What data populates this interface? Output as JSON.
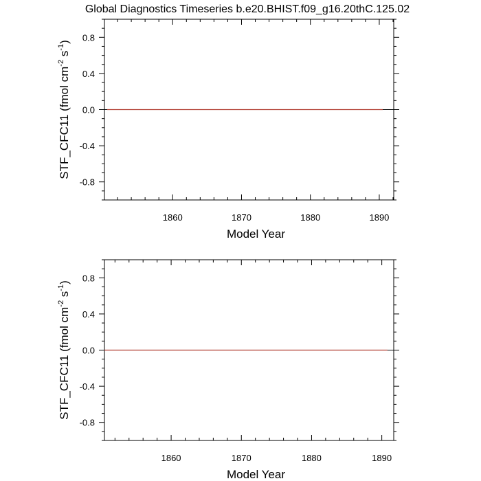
{
  "title": "Global Diagnostics Timeseries b.e20.BHIST.f09_g16.20thC.125.02",
  "colors": {
    "series": "#b03a2e",
    "zero_line": "#000000",
    "frame": "#000000"
  },
  "chart_data": [
    {
      "type": "line",
      "xlabel": "Model Year",
      "ylabel": "STF_CFC11 (fmol cm",
      "ylabel_exp1": "-2",
      "ylabel_mid": " s",
      "ylabel_exp2": "-1",
      "ylabel_end": ")",
      "xlim": [
        1850.1,
        1892.1
      ],
      "ylim": [
        -1.0,
        1.0
      ],
      "xticks": [
        1860,
        1870,
        1880,
        1890
      ],
      "xtick_labels": [
        "1860",
        "1870",
        "1880",
        "1890"
      ],
      "yticks": [
        0.8,
        0.4,
        0.0,
        -0.4,
        -0.8
      ],
      "ytick_labels": [
        "0.8",
        "0.4",
        "0.0",
        "-0.4",
        "-0.8"
      ],
      "reference_line": 0.0,
      "series": [
        {
          "x": [
            1850.5,
            1860,
            1870,
            1880,
            1890.5
          ],
          "y": [
            0,
            0,
            0,
            0,
            0
          ]
        }
      ]
    },
    {
      "type": "line",
      "xlabel": "Model Year",
      "ylabel": "STF_CFC11 (fmol cm",
      "ylabel_exp1": "-2",
      "ylabel_mid": " s",
      "ylabel_exp2": "-1",
      "ylabel_end": ")",
      "xlim": [
        1850.1,
        1882.0
      ],
      "ylim": [
        -1.0,
        1.0
      ],
      "xticks": [
        1860,
        1870,
        1880,
        1890
      ],
      "xtick_labels": [
        "1860",
        "1870",
        "1880",
        "1890"
      ],
      "yticks": [
        0.8,
        0.4,
        0.0,
        -0.4,
        -0.8
      ],
      "ytick_labels": [
        "0.8",
        "0.4",
        "0.0",
        "-0.4",
        "-0.8"
      ],
      "reference_line": 0.0,
      "series": [
        {
          "x": [
            1850.1,
            1860,
            1870,
            1880,
            1890.8
          ],
          "y": [
            0,
            0,
            0,
            0,
            0
          ]
        }
      ]
    }
  ]
}
